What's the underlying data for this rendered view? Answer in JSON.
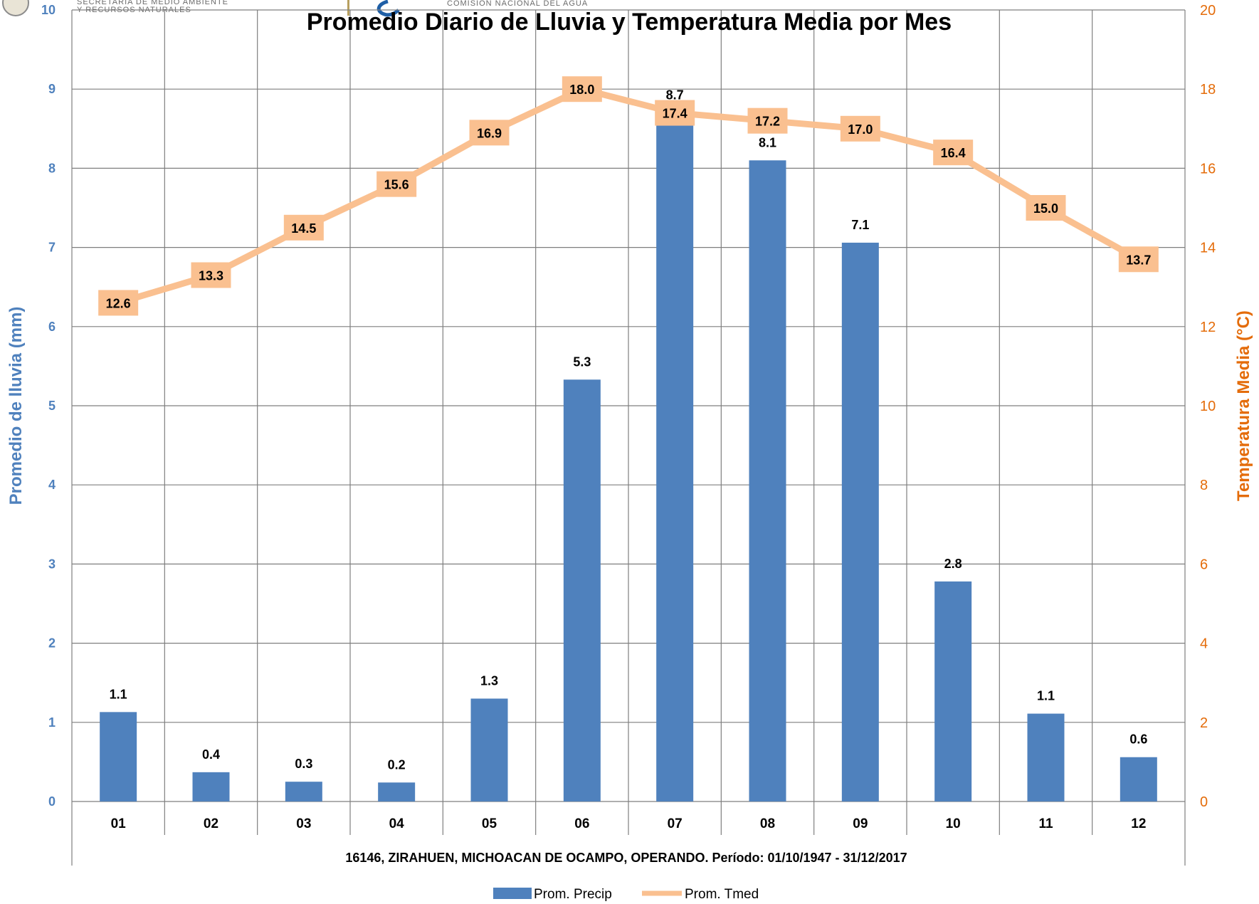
{
  "header": {
    "left_logo_text_1": "SECRETARÍA DE MEDIO AMBIENTE",
    "left_logo_text_2": "Y RECURSOS NATURALES",
    "right_logo_text": "COMISIÓN NACIONAL DEL AGUA"
  },
  "chart_data": {
    "type": "bar",
    "title": "Promedio Diario de Lluvia y Temperatura Media por Mes",
    "xlabel": "16146, ZIRAHUEN, MICHOACAN DE OCAMPO, OPERANDO. Período: 01/10/1947 - 31/12/2017",
    "ylabel": "Promedio de lluvia (mm)",
    "y2label": "Temperatura Media (°C)",
    "categories": [
      "01",
      "02",
      "03",
      "04",
      "05",
      "06",
      "07",
      "08",
      "09",
      "10",
      "11",
      "12"
    ],
    "ylim": [
      0,
      10
    ],
    "y2lim": [
      0,
      20
    ],
    "yticks": [
      "0",
      "1",
      "2",
      "3",
      "4",
      "5",
      "6",
      "7",
      "8",
      "9",
      "10"
    ],
    "y2ticks": [
      "0",
      "2",
      "4",
      "6",
      "8",
      "10",
      "12",
      "14",
      "16",
      "18",
      "20"
    ],
    "grid": true,
    "legend_position": "bottom",
    "series": [
      {
        "name": "Prom. Precip",
        "type": "bar",
        "axis": "left",
        "color": "#4f81bd",
        "values": [
          1.13,
          0.37,
          0.25,
          0.24,
          1.3,
          5.33,
          8.7,
          8.1,
          7.06,
          2.78,
          1.11,
          0.56
        ],
        "labels": [
          "1.1",
          "0.4",
          "0.3",
          "0.2",
          "1.3",
          "5.3",
          "8.7",
          "8.1",
          "7.1",
          "2.8",
          "1.1",
          "0.6"
        ]
      },
      {
        "name": "Prom. Tmed",
        "type": "line",
        "axis": "right",
        "color": "#fac090",
        "values": [
          12.6,
          13.3,
          14.5,
          15.6,
          16.9,
          18.0,
          17.4,
          17.2,
          17.0,
          16.4,
          15.0,
          13.7
        ],
        "labels": [
          "12.6",
          "13.3",
          "14.5",
          "15.6",
          "16.9",
          "18.0",
          "17.4",
          "17.2",
          "17.0",
          "16.4",
          "15.0",
          "13.7"
        ]
      }
    ]
  }
}
